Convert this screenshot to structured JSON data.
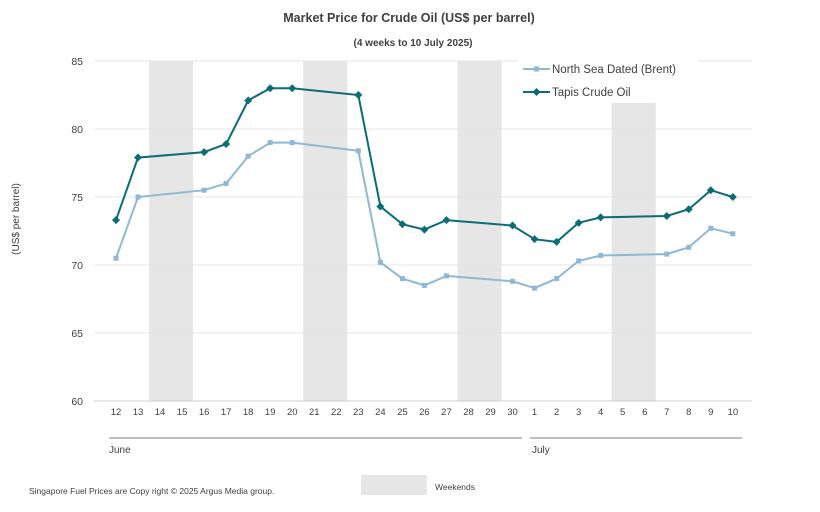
{
  "chart_data": {
    "type": "line",
    "title": "Market Price for Crude  Oil (US$ per barrel)",
    "subtitle": "(4 weeks to 10 July 2025)",
    "ylabel": "(US$ per barrel)",
    "ylim": [
      60,
      85
    ],
    "yticks": [
      60,
      65,
      70,
      75,
      80,
      85
    ],
    "grid": true,
    "legend_position": "top-right",
    "x": [
      "12",
      "13",
      "14",
      "15",
      "16",
      "17",
      "18",
      "19",
      "20",
      "21",
      "22",
      "23",
      "24",
      "25",
      "26",
      "27",
      "28",
      "29",
      "30",
      "1",
      "2",
      "3",
      "4",
      "5",
      "6",
      "7",
      "8",
      "9",
      "10"
    ],
    "months": [
      {
        "label": "June",
        "from": "12",
        "to": "30"
      },
      {
        "label": "July",
        "from": "1",
        "to": "10"
      }
    ],
    "weekends": [
      [
        "14",
        "15"
      ],
      [
        "21",
        "22"
      ],
      [
        "28",
        "29"
      ],
      [
        "5",
        "6"
      ]
    ],
    "weekend_label": "Weekends",
    "series": [
      {
        "name": "North Sea Dated (Brent)",
        "color": "#8fb8d4",
        "marker": "square",
        "points": [
          [
            "12",
            70.5
          ],
          [
            "13",
            75.0
          ],
          [
            "16",
            75.5
          ],
          [
            "17",
            76.0
          ],
          [
            "18",
            78.0
          ],
          [
            "19",
            79.0
          ],
          [
            "20",
            79.0
          ],
          [
            "23",
            78.4
          ],
          [
            "24",
            70.2
          ],
          [
            "25",
            69.0
          ],
          [
            "26",
            68.5
          ],
          [
            "27",
            69.2
          ],
          [
            "30",
            68.8
          ],
          [
            "1",
            68.3
          ],
          [
            "2",
            69.0
          ],
          [
            "3",
            70.3
          ],
          [
            "4",
            70.7
          ],
          [
            "7",
            70.8
          ],
          [
            "8",
            71.3
          ],
          [
            "9",
            72.7
          ],
          [
            "10",
            72.3
          ]
        ]
      },
      {
        "name": "Tapis Crude Oil",
        "color": "#0b6c78",
        "marker": "diamond",
        "points": [
          [
            "12",
            73.3
          ],
          [
            "13",
            77.9
          ],
          [
            "16",
            78.3
          ],
          [
            "17",
            78.9
          ],
          [
            "18",
            82.1
          ],
          [
            "19",
            83.0
          ],
          [
            "20",
            83.0
          ],
          [
            "23",
            82.5
          ],
          [
            "24",
            74.3
          ],
          [
            "25",
            73.0
          ],
          [
            "26",
            72.6
          ],
          [
            "27",
            73.3
          ],
          [
            "30",
            72.9
          ],
          [
            "1",
            71.9
          ],
          [
            "2",
            71.7
          ],
          [
            "3",
            73.1
          ],
          [
            "4",
            73.5
          ],
          [
            "7",
            73.6
          ],
          [
            "8",
            74.1
          ],
          [
            "9",
            75.5
          ],
          [
            "10",
            75.0
          ]
        ]
      }
    ]
  },
  "footer": {
    "copyright": "Singapore  Fuel Prices are  Copy right © 2025 Argus Media  group."
  },
  "colors": {
    "weekend_fill": "#e6e6e6",
    "grid": "#e4e4e4",
    "axis": "#808080",
    "text": "#404040"
  }
}
